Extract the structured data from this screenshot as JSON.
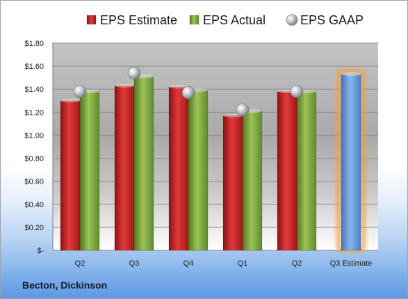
{
  "chart_data": {
    "type": "bar",
    "title": "",
    "xlabel": "",
    "ylabel": "",
    "categories": [
      "Q2",
      "Q3",
      "Q4",
      "Q1",
      "Q2",
      "Q3 Estimate"
    ],
    "series": [
      {
        "name": "EPS Estimate",
        "kind": "bar",
        "color": "#d42a2a",
        "values": [
          1.3,
          1.43,
          1.42,
          1.17,
          1.38,
          null
        ]
      },
      {
        "name": "EPS Actual",
        "kind": "bar",
        "color": "#7faa3c",
        "values": [
          1.38,
          1.51,
          1.39,
          1.21,
          1.38,
          null
        ]
      },
      {
        "name": "EPS GAAP",
        "kind": "marker",
        "color": "#b9bec4",
        "values": [
          1.38,
          1.54,
          1.37,
          1.22,
          1.38,
          null
        ]
      },
      {
        "name": "",
        "kind": "bar",
        "color": "#6d9fdc",
        "highlight": "#f0a33a",
        "values": [
          null,
          null,
          null,
          null,
          null,
          1.53
        ]
      }
    ],
    "ylim": [
      0,
      1.8
    ],
    "yticks": [
      {
        "value": 1.8,
        "label": "$1.80"
      },
      {
        "value": 1.6,
        "label": "$1.60"
      },
      {
        "value": 1.4,
        "label": "$1.40"
      },
      {
        "value": 1.2,
        "label": "$1.20"
      },
      {
        "value": 1.0,
        "label": "$1.00"
      },
      {
        "value": 0.8,
        "label": "$0.80"
      },
      {
        "value": 0.6,
        "label": "$0.60"
      },
      {
        "value": 0.4,
        "label": "$0.40"
      },
      {
        "value": 0.2,
        "label": "$0.20"
      },
      {
        "value": 0,
        "label": "$-"
      }
    ],
    "grid": true,
    "legend": "top-center"
  },
  "footer": {
    "company": "Becton, Dickinson"
  }
}
